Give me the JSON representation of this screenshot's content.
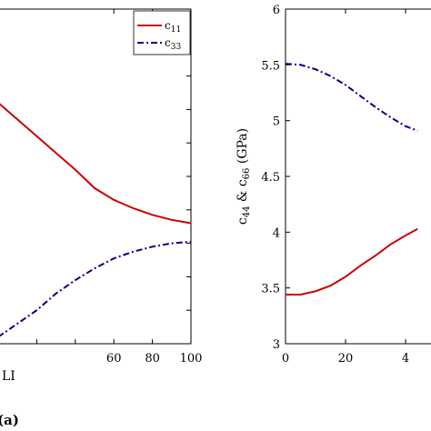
{
  "chart_data": [
    {
      "type": "line",
      "panel_label": "(a)",
      "xlabel": "LI",
      "ylabel": "",
      "xlim": [
        0,
        100
      ],
      "xticks": [
        "60",
        "80",
        "100"
      ],
      "legend": {
        "placement": "top-right",
        "entries": [
          "c11",
          "c33"
        ]
      },
      "series": [
        {
          "name": "c11",
          "color": "#cc0000",
          "style": "solid",
          "x": [
            0,
            10,
            20,
            30,
            40,
            50,
            60,
            70,
            80,
            90,
            100
          ],
          "y": [
            0.72,
            0.67,
            0.62,
            0.57,
            0.52,
            0.465,
            0.43,
            0.405,
            0.385,
            0.37,
            0.36
          ]
        },
        {
          "name": "c33",
          "color": "#00008b",
          "style": "dashdot",
          "x": [
            0,
            10,
            20,
            30,
            40,
            50,
            60,
            70,
            80,
            90,
            100
          ],
          "y": [
            0.02,
            0.06,
            0.1,
            0.15,
            0.19,
            0.225,
            0.255,
            0.275,
            0.29,
            0.3,
            0.305
          ]
        }
      ]
    },
    {
      "type": "line",
      "xlabel": "",
      "ylabel": "c44 & c66 (GPa)",
      "xlim": [
        0,
        50
      ],
      "ylim": [
        3,
        6
      ],
      "xticks": [
        "0",
        "20",
        "4"
      ],
      "yticks": [
        "3",
        "3.5",
        "4",
        "4.5",
        "5",
        "5.5",
        "6"
      ],
      "series": [
        {
          "name": "",
          "color": "#cc0000",
          "style": "solid",
          "x": [
            0,
            5,
            10,
            15,
            20,
            25,
            30,
            35,
            40,
            44
          ],
          "y": [
            3.44,
            3.44,
            3.47,
            3.52,
            3.6,
            3.7,
            3.79,
            3.89,
            3.97,
            4.03
          ]
        },
        {
          "name": "",
          "color": "#00008b",
          "style": "dashdot",
          "x": [
            0,
            5,
            10,
            15,
            20,
            25,
            30,
            35,
            40,
            44
          ],
          "y": [
            5.51,
            5.5,
            5.46,
            5.4,
            5.32,
            5.22,
            5.12,
            5.03,
            4.95,
            4.91
          ]
        }
      ]
    }
  ]
}
